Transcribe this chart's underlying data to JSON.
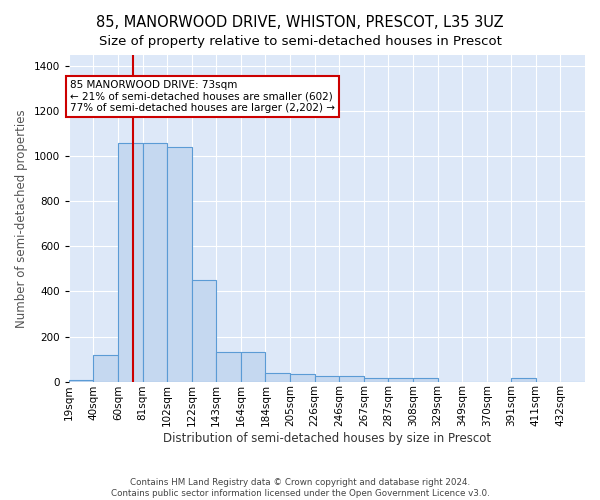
{
  "title": "85, MANORWOOD DRIVE, WHISTON, PRESCOT, L35 3UZ",
  "subtitle": "Size of property relative to semi-detached houses in Prescot",
  "xlabel": "Distribution of semi-detached houses by size in Prescot",
  "ylabel": "Number of semi-detached properties",
  "bin_labels": [
    "19sqm",
    "40sqm",
    "60sqm",
    "81sqm",
    "102sqm",
    "122sqm",
    "143sqm",
    "164sqm",
    "184sqm",
    "205sqm",
    "226sqm",
    "246sqm",
    "267sqm",
    "287sqm",
    "308sqm",
    "329sqm",
    "349sqm",
    "370sqm",
    "391sqm",
    "411sqm",
    "432sqm"
  ],
  "bin_edges": [
    19,
    40,
    60,
    81,
    102,
    122,
    143,
    164,
    184,
    205,
    226,
    246,
    267,
    287,
    308,
    329,
    349,
    370,
    391,
    411,
    432
  ],
  "bar_heights": [
    5,
    120,
    1060,
    1060,
    1040,
    450,
    130,
    130,
    40,
    35,
    25,
    25,
    15,
    15,
    15,
    0,
    0,
    0,
    15,
    0,
    0
  ],
  "bar_color": "#c5d8f0",
  "bar_edge_color": "#5b9bd5",
  "property_size": 73,
  "property_bin_index": 2,
  "property_line_color": "#cc0000",
  "annotation_text": "85 MANORWOOD DRIVE: 73sqm\n← 21% of semi-detached houses are smaller (602)\n77% of semi-detached houses are larger (2,202) →",
  "annotation_box_color": "#ffffff",
  "annotation_box_edge_color": "#cc0000",
  "ylim": [
    0,
    1450
  ],
  "yticks": [
    0,
    200,
    400,
    600,
    800,
    1000,
    1200,
    1400
  ],
  "background_color": "#dde8f8",
  "grid_color": "#ffffff",
  "footer": "Contains HM Land Registry data © Crown copyright and database right 2024.\nContains public sector information licensed under the Open Government Licence v3.0.",
  "title_fontsize": 10.5,
  "tick_label_fontsize": 7.5,
  "ylabel_fontsize": 8.5,
  "xlabel_fontsize": 8.5
}
